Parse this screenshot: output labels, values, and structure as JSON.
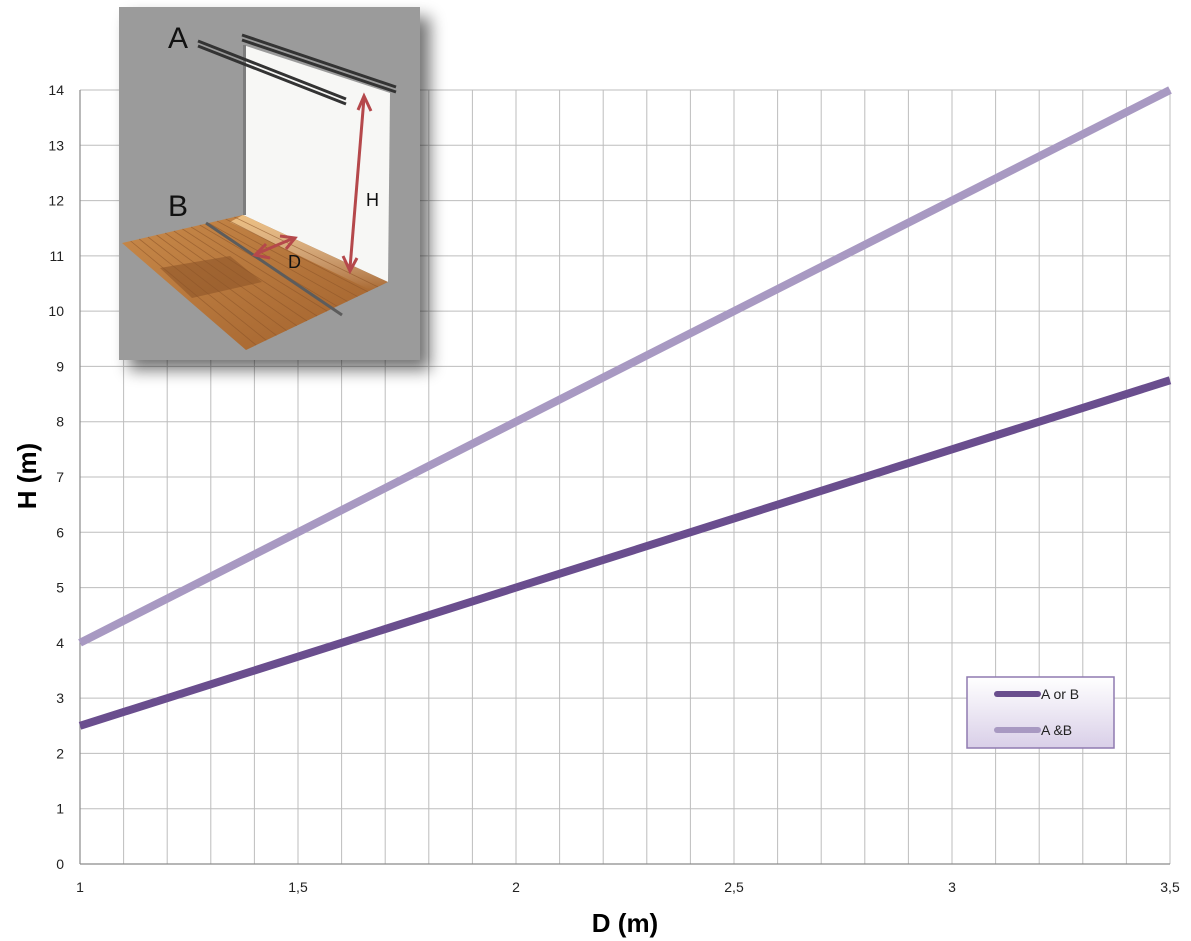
{
  "chart_data": {
    "type": "line",
    "xlabel": "D (m)",
    "ylabel": "H (m)",
    "xlim": [
      1,
      3.5
    ],
    "ylim": [
      0,
      14
    ],
    "x_ticks": [
      "1",
      "1,5",
      "2",
      "2,5",
      "3",
      "3,5"
    ],
    "y_ticks": [
      "0",
      "1",
      "2",
      "3",
      "4",
      "5",
      "6",
      "7",
      "8",
      "9",
      "10",
      "11",
      "12",
      "13",
      "14"
    ],
    "grid": true,
    "legend_position": "bottom-right",
    "series": [
      {
        "name": "A or B",
        "color": "#6a4e8e",
        "x": [
          1,
          3.5
        ],
        "y": [
          2.5,
          8.75
        ]
      },
      {
        "name": "A &B",
        "color": "#a899c2",
        "x": [
          1,
          3.5
        ],
        "y": [
          4,
          14
        ]
      }
    ]
  },
  "inset": {
    "labels": {
      "a": "A",
      "b": "B",
      "h": "H",
      "d": "D"
    },
    "arrow_color": "#b5484b"
  }
}
